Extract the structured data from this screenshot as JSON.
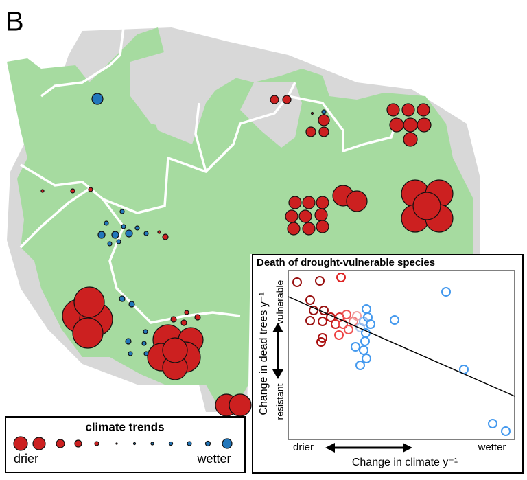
{
  "panel_label": "B",
  "legend": {
    "title": "climate trends",
    "left_label": "drier",
    "right_label": "wetter"
  },
  "inset": {
    "title": "Death of drought-vulnerable species",
    "y_axis": {
      "label": "Change in dead trees y⁻¹",
      "top_label": "vulnerable",
      "bottom_label": "resistant"
    },
    "x_axis": {
      "label": "Change in climate y⁻¹",
      "left_label": "drier",
      "right_label": "wetter"
    }
  }
}
